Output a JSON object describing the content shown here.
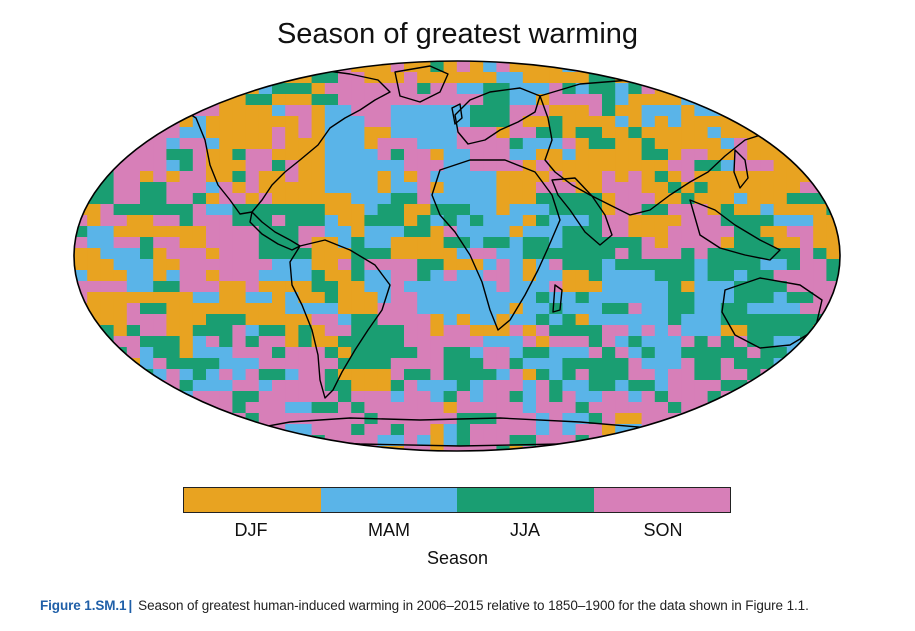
{
  "title": "Season of greatest warming",
  "legend": {
    "title": "Season",
    "categories": [
      {
        "label": "DJF",
        "color": "#e8a321"
      },
      {
        "label": "MAM",
        "color": "#5ab4e8"
      },
      {
        "label": "JJA",
        "color": "#1a9e72"
      },
      {
        "label": "SON",
        "color": "#d77fb8"
      }
    ]
  },
  "caption": {
    "label": "Figure 1.SM.1",
    "separator": "|",
    "text": "Season of greatest human-induced warming in 2006–2015 relative to 1850–1900 for the data shown in Figure 1.1."
  },
  "map": {
    "projection": "Robinson",
    "coastline_color": "#000000",
    "outline_color": "#000000"
  }
}
